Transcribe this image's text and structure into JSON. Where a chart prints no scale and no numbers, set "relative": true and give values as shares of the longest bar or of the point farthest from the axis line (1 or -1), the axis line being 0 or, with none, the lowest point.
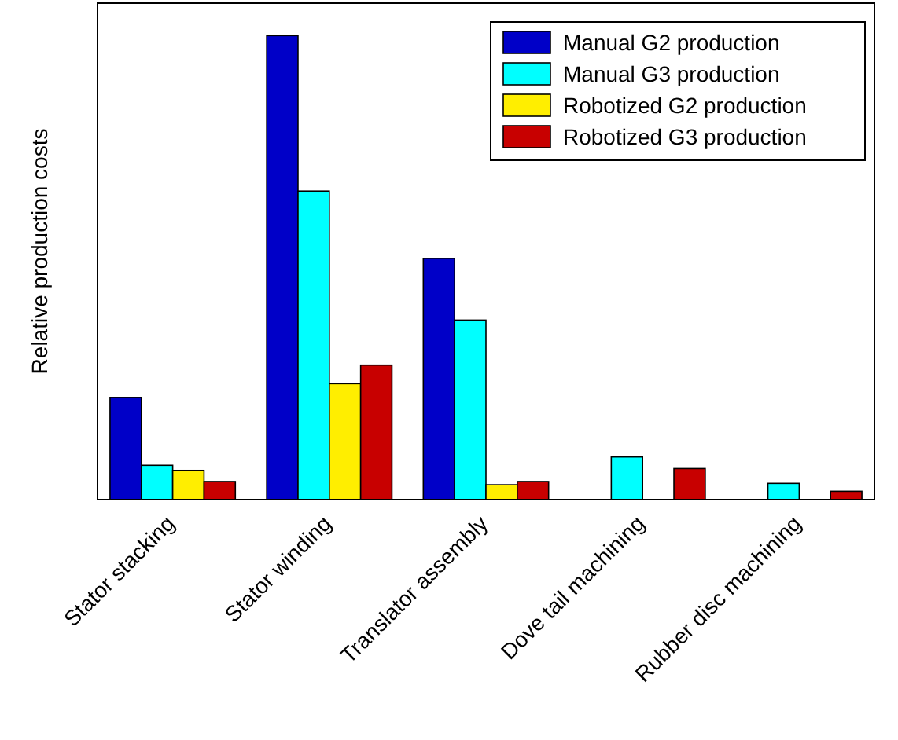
{
  "chart_data": {
    "type": "bar",
    "ylabel": "Relative production costs",
    "relative": true,
    "legend": "top right",
    "categories": [
      "Stator stacking",
      "Stator winding",
      "Translator assembly",
      "Dove tail machining",
      "Rubber disc machining"
    ],
    "series": [
      {
        "name": "Manual G2 production",
        "color": "#0000c8",
        "values": [
          0.22,
          1,
          0.52,
          null,
          null
        ]
      },
      {
        "name": "Manual G3 production",
        "color": "#00ffff",
        "values": [
          0.074,
          0.665,
          0.387,
          0.092,
          0.035
        ]
      },
      {
        "name": "Robotized G2 production",
        "color": "#ffee00",
        "values": [
          0.063,
          0.25,
          0.032,
          null,
          null
        ]
      },
      {
        "name": "Robotized G3 production",
        "color": "#c80000",
        "values": [
          0.039,
          0.29,
          0.039,
          0.067,
          0.018
        ]
      }
    ]
  }
}
